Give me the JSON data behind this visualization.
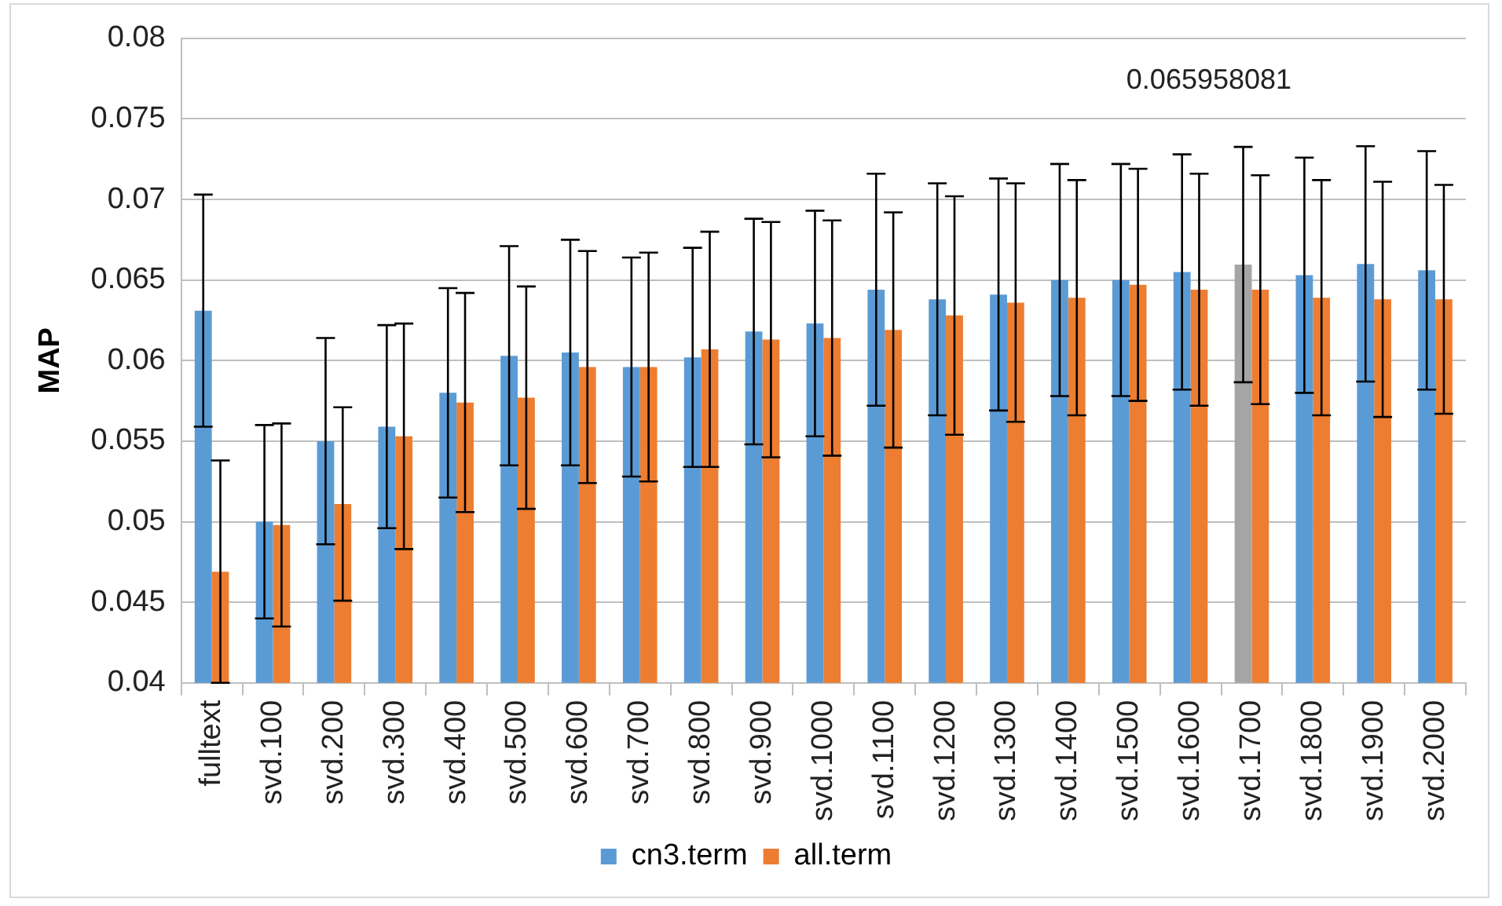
{
  "chart_data": {
    "type": "bar",
    "ylabel": "MAP",
    "categories": [
      "fulltext",
      "svd.100",
      "svd.200",
      "svd.300",
      "svd.400",
      "svd.500",
      "svd.600",
      "svd.700",
      "svd.800",
      "svd.900",
      "svd.1000",
      "svd.1100",
      "svd.1200",
      "svd.1300",
      "svd.1400",
      "svd.1500",
      "svd.1600",
      "svd.1700",
      "svd.1800",
      "svd.1900",
      "svd.2000"
    ],
    "series": [
      {
        "name": "cn3.term",
        "color": "#5b9bd5",
        "colors": [
          "#5b9bd5",
          "#5b9bd5",
          "#5b9bd5",
          "#5b9bd5",
          "#5b9bd5",
          "#5b9bd5",
          "#5b9bd5",
          "#5b9bd5",
          "#5b9bd5",
          "#5b9bd5",
          "#5b9bd5",
          "#5b9bd5",
          "#5b9bd5",
          "#5b9bd5",
          "#5b9bd5",
          "#5b9bd5",
          "#5b9bd5",
          "#a5a5a5",
          "#5b9bd5",
          "#5b9bd5",
          "#5b9bd5"
        ],
        "values": [
          0.0631,
          0.05,
          0.055,
          0.0559,
          0.058,
          0.0603,
          0.0605,
          0.0596,
          0.0602,
          0.0618,
          0.0623,
          0.0644,
          0.0638,
          0.0641,
          0.065,
          0.065,
          0.0655,
          0.065958081,
          0.0653,
          0.066,
          0.0656
        ],
        "errors": [
          0.0072,
          0.006,
          0.0064,
          0.0063,
          0.0065,
          0.0068,
          0.007,
          0.0068,
          0.0068,
          0.007,
          0.007,
          0.0072,
          0.0072,
          0.0072,
          0.0072,
          0.0072,
          0.0073,
          0.0073,
          0.0073,
          0.0073,
          0.0074
        ]
      },
      {
        "name": "all.term",
        "color": "#ed7d31",
        "values": [
          0.0469,
          0.0498,
          0.0511,
          0.0553,
          0.0574,
          0.0577,
          0.0596,
          0.0596,
          0.0607,
          0.0613,
          0.0614,
          0.0619,
          0.0628,
          0.0636,
          0.0639,
          0.0647,
          0.0644,
          0.0644,
          0.0639,
          0.0638,
          0.0638
        ],
        "errors": [
          0.0069,
          0.0063,
          0.006,
          0.007,
          0.0068,
          0.0069,
          0.0072,
          0.0071,
          0.0073,
          0.0073,
          0.0073,
          0.0073,
          0.0074,
          0.0074,
          0.0073,
          0.0072,
          0.0072,
          0.0071,
          0.0073,
          0.0073,
          0.0071
        ]
      }
    ],
    "ylim": [
      0.04,
      0.08
    ],
    "yticks": [
      0.04,
      0.045,
      0.05,
      0.055,
      0.06,
      0.065,
      0.07,
      0.075,
      0.08
    ],
    "grid": "y",
    "legend": "bottom",
    "annotations": [
      "0.065958081"
    ]
  }
}
